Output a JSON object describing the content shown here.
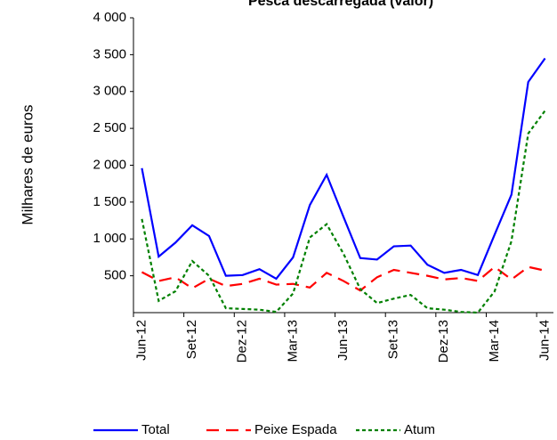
{
  "chart_data": {
    "type": "line",
    "title": "Pesca descarregada (valor)",
    "y_label": "Milhares de euros",
    "categories": [
      "Jun-12",
      null,
      null,
      "Set-12",
      null,
      null,
      "Dez-12",
      null,
      null,
      "Mar-13",
      null,
      null,
      "Jun-13",
      null,
      null,
      "Set-13",
      null,
      null,
      "Dez-13",
      null,
      null,
      "Mar-14",
      null,
      null,
      "Jun-14"
    ],
    "series": [
      {
        "name": "Total",
        "color": "#0000ff",
        "dash": "solid",
        "values": [
          1960,
          760,
          950,
          1185,
          1040,
          500,
          510,
          590,
          460,
          750,
          1460,
          1870,
          1300,
          740,
          720,
          900,
          910,
          650,
          540,
          580,
          510,
          1060,
          1600,
          3130,
          3450
        ]
      },
      {
        "name": "Peixe Espada",
        "color": "#ff0000",
        "dash": "dashed",
        "values": [
          550,
          430,
          480,
          330,
          460,
          360,
          390,
          460,
          380,
          390,
          340,
          540,
          430,
          300,
          480,
          580,
          540,
          500,
          450,
          470,
          430,
          620,
          450,
          620,
          570
        ]
      },
      {
        "name": "Atum",
        "color": "#008000",
        "dash": "dotted",
        "values": [
          1270,
          160,
          290,
          700,
          500,
          60,
          50,
          40,
          10,
          260,
          1020,
          1200,
          800,
          320,
          130,
          190,
          240,
          60,
          40,
          10,
          0,
          290,
          970,
          2430,
          2740
        ]
      }
    ],
    "ylim": [
      0,
      4000
    ],
    "yticks": [
      500,
      {
        "value": 1000,
        "label": "1 000"
      },
      {
        "value": 1500,
        "label": "1 500"
      },
      {
        "value": 2000,
        "label": "2 000"
      },
      {
        "value": 2500,
        "label": "2 500"
      },
      {
        "value": 3000,
        "label": "3 000"
      },
      {
        "value": 3500,
        "label": "3 500"
      },
      {
        "value": 4000,
        "label": "4 000"
      }
    ],
    "grid": false,
    "legend": "bottom"
  }
}
